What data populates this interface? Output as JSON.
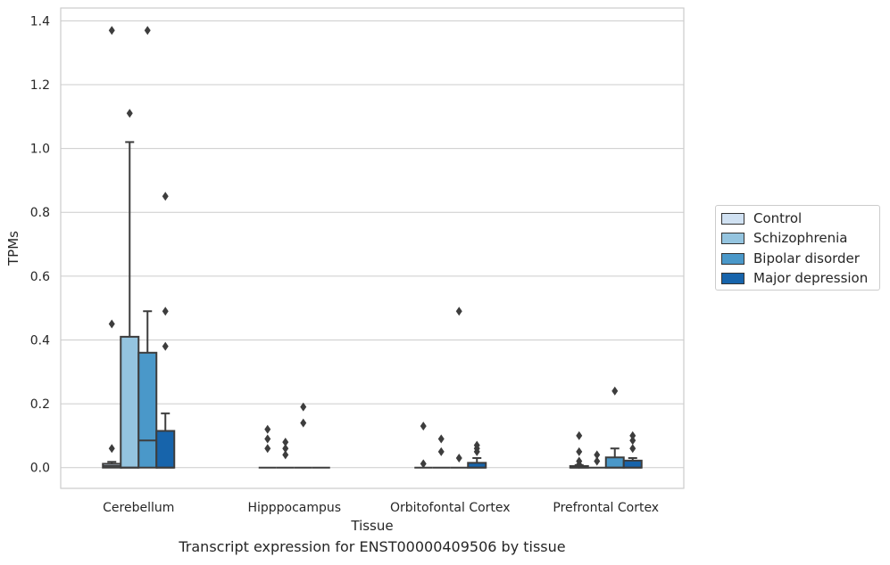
{
  "caption": "Transcript expression for ENST00000409506 by tissue",
  "chart_data": {
    "type": "box",
    "xlabel": "Tissue",
    "ylabel": "TPMs",
    "ylim": [
      -0.065,
      1.44
    ],
    "yticks": [
      "0.0",
      "0.2",
      "0.4",
      "0.6",
      "0.8",
      "1.0",
      "1.2",
      "1.4"
    ],
    "ytick_values": [
      0,
      0.2,
      0.4,
      0.6,
      0.8,
      1.0,
      1.2,
      1.4
    ],
    "grid": "horizontal",
    "legend_position": "right",
    "categories": [
      "Cerebellum",
      "Hipppocampus",
      "Orbitofontal Cortex",
      "Prefrontal Cortex"
    ],
    "series": [
      {
        "name": "Control",
        "color": "#d0e1f2",
        "boxes": [
          {
            "q1": 0,
            "median": 0.005,
            "q3": 0.012,
            "whisker_low": 0,
            "whisker_high": 0.018,
            "outliers": [
              0.06,
              0.45,
              1.37
            ]
          },
          {
            "q1": 0,
            "median": 0,
            "q3": 0,
            "whisker_low": 0,
            "whisker_high": 0,
            "outliers": [
              0.06,
              0.09,
              0.12
            ]
          },
          {
            "q1": 0,
            "median": 0,
            "q3": 0,
            "whisker_low": 0,
            "whisker_high": 0,
            "outliers": [
              0.012,
              0.13
            ]
          },
          {
            "q1": 0,
            "median": 0,
            "q3": 0.005,
            "whisker_low": 0,
            "whisker_high": 0.008,
            "outliers": [
              0.01,
              0.02,
              0.05,
              0.1
            ]
          }
        ]
      },
      {
        "name": "Schizophrenia",
        "color": "#94c4df",
        "boxes": [
          {
            "q1": 0,
            "median": 0,
            "q3": 0.41,
            "whisker_low": 0,
            "whisker_high": 1.02,
            "outliers": [
              1.11
            ]
          },
          {
            "q1": 0,
            "median": 0,
            "q3": 0,
            "whisker_low": 0,
            "whisker_high": 0,
            "outliers": [
              0.04,
              0.06,
              0.08
            ]
          },
          {
            "q1": 0,
            "median": 0,
            "q3": 0,
            "whisker_low": 0,
            "whisker_high": 0,
            "outliers": [
              0.05,
              0.09
            ]
          },
          {
            "q1": 0,
            "median": 0,
            "q3": 0,
            "whisker_low": 0,
            "whisker_high": 0,
            "outliers": [
              0.02,
              0.04
            ]
          }
        ]
      },
      {
        "name": "Bipolar disorder",
        "color": "#4a98c9",
        "boxes": [
          {
            "q1": 0,
            "median": 0.085,
            "q3": 0.36,
            "whisker_low": 0,
            "whisker_high": 0.49,
            "outliers": [
              1.37
            ]
          },
          {
            "q1": 0,
            "median": 0,
            "q3": 0,
            "whisker_low": 0,
            "whisker_high": 0,
            "outliers": [
              0.14,
              0.19
            ]
          },
          {
            "q1": 0,
            "median": 0,
            "q3": 0,
            "whisker_low": 0,
            "whisker_high": 0,
            "outliers": [
              0.03,
              0.49
            ]
          },
          {
            "q1": 0,
            "median": 0,
            "q3": 0.032,
            "whisker_low": 0,
            "whisker_high": 0.06,
            "outliers": [
              0.24
            ]
          }
        ]
      },
      {
        "name": "Major depression",
        "color": "#1764ab",
        "boxes": [
          {
            "q1": 0,
            "median": 0,
            "q3": 0.115,
            "whisker_low": 0,
            "whisker_high": 0.17,
            "outliers": [
              0.38,
              0.49,
              0.85
            ]
          },
          {
            "q1": 0,
            "median": 0,
            "q3": 0,
            "whisker_low": 0,
            "whisker_high": 0,
            "outliers": []
          },
          {
            "q1": 0,
            "median": 0,
            "q3": 0.015,
            "whisker_low": 0,
            "whisker_high": 0.03,
            "outliers": [
              0.05,
              0.06,
              0.07
            ]
          },
          {
            "q1": 0,
            "median": 0,
            "q3": 0.022,
            "whisker_low": 0,
            "whisker_high": 0.03,
            "outliers": [
              0.06,
              0.085,
              0.1
            ]
          }
        ]
      }
    ]
  }
}
